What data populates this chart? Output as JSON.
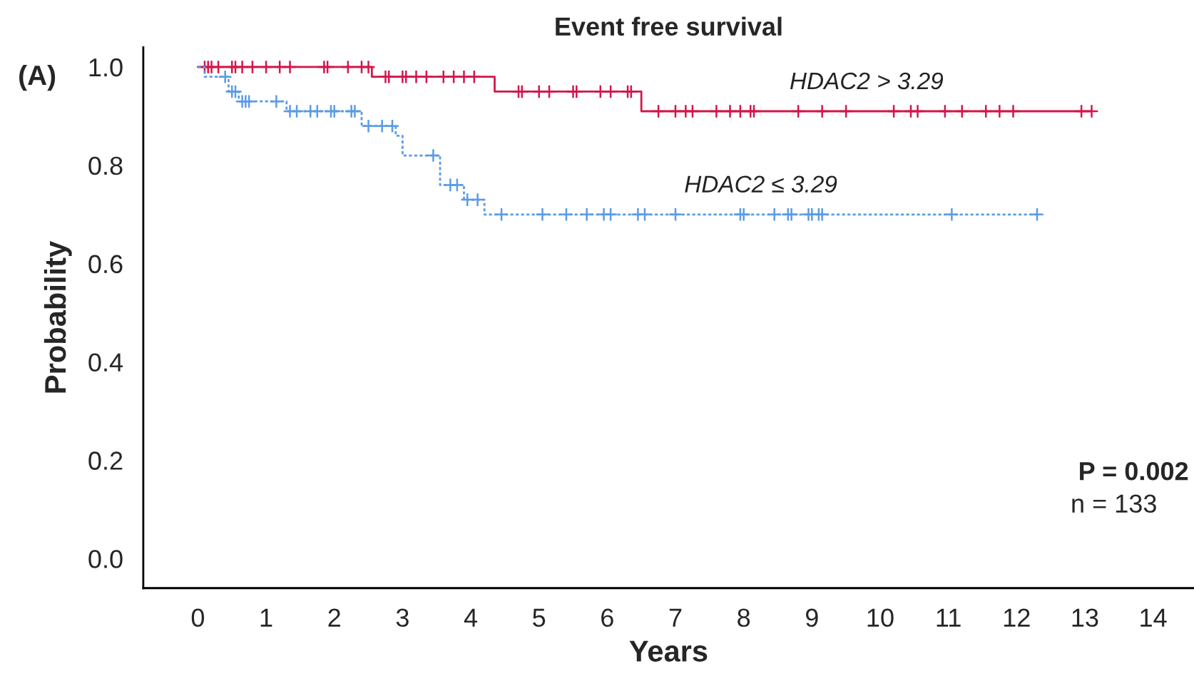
{
  "chart_data": {
    "type": "step",
    "title": "Event free survival",
    "xlabel": "Years",
    "ylabel": "Probability",
    "xlim": [
      -0.8,
      14.6
    ],
    "ylim": [
      -0.06,
      1.04
    ],
    "xticks": [
      0,
      1,
      2,
      3,
      4,
      5,
      6,
      7,
      8,
      9,
      10,
      11,
      12,
      13,
      14
    ],
    "yticks": [
      {
        "value": 0,
        "label": "0.0"
      },
      {
        "value": 0.2,
        "label": "0.2"
      },
      {
        "value": 0.4,
        "label": "0.4"
      },
      {
        "value": 0.6,
        "label": "0.6"
      },
      {
        "value": 0.8,
        "label": "0.8"
      },
      {
        "value": 1,
        "label": "1.0"
      }
    ],
    "grid": false,
    "legend": false,
    "annotations": [
      "(A)",
      "P = 0.002",
      "n = 133"
    ],
    "series": [
      {
        "name": "HDAC2 > 3.29",
        "color": "#d2164a",
        "line_style": "solid",
        "marker": "none",
        "x": [
          0,
          2.55,
          4.35,
          6.5,
          13.1
        ],
        "values": [
          1.0,
          0.98,
          0.95,
          0.91,
          0.91
        ]
      },
      {
        "name": "HDAC2 ≤ 3.29",
        "color": "#5b9be6",
        "line_style": "dashed",
        "marker": "none",
        "x": [
          0,
          0.1,
          0.45,
          0.6,
          1.3,
          2.4,
          2.9,
          3.0,
          3.55,
          3.9,
          4.2,
          12.3
        ],
        "values": [
          1.0,
          0.98,
          0.95,
          0.93,
          0.91,
          0.88,
          0.86,
          0.82,
          0.76,
          0.73,
          0.7,
          0.7
        ]
      },
      {
        "type": "scatter",
        "color": "#d2164a",
        "marker": "cross",
        "x": [
          0.1,
          0.15,
          0.2,
          0.3,
          0.5,
          0.55,
          0.65,
          0.8,
          1.0,
          1.2,
          1.35,
          1.85,
          1.9,
          2.2,
          2.4,
          2.5,
          2.75,
          2.8,
          3.0,
          3.05,
          3.2,
          3.35,
          3.6,
          3.75,
          3.9,
          4.05,
          4.7,
          4.75,
          5.0,
          5.15,
          5.5,
          5.55,
          5.9,
          6.05,
          6.3,
          6.35,
          6.75,
          7.0,
          7.15,
          7.25,
          7.6,
          7.8,
          7.95,
          8.1,
          8.15,
          8.8,
          9.15,
          9.5,
          10.2,
          10.45,
          10.55,
          10.95,
          11.2,
          11.55,
          11.75,
          11.95,
          12.95,
          13.1
        ],
        "values": [
          1.0,
          1.0,
          1.0,
          1.0,
          1.0,
          1.0,
          1.0,
          1.0,
          1.0,
          1.0,
          1.0,
          1.0,
          1.0,
          1.0,
          1.0,
          1.0,
          0.98,
          0.98,
          0.98,
          0.98,
          0.98,
          0.98,
          0.98,
          0.98,
          0.98,
          0.98,
          0.95,
          0.95,
          0.95,
          0.95,
          0.95,
          0.95,
          0.95,
          0.95,
          0.95,
          0.95,
          0.91,
          0.91,
          0.91,
          0.91,
          0.91,
          0.91,
          0.91,
          0.91,
          0.91,
          0.91,
          0.91,
          0.91,
          0.91,
          0.91,
          0.91,
          0.91,
          0.91,
          0.91,
          0.91,
          0.91,
          0.91,
          0.91
        ]
      },
      {
        "type": "scatter",
        "color": "#5b9be6",
        "marker": "cross",
        "x": [
          0.4,
          0.5,
          0.55,
          0.65,
          0.7,
          0.75,
          1.15,
          1.35,
          1.45,
          1.65,
          1.75,
          1.95,
          2.0,
          2.25,
          2.3,
          2.5,
          2.7,
          2.85,
          3.45,
          3.7,
          3.8,
          3.95,
          4.1,
          4.45,
          5.05,
          5.4,
          5.7,
          5.95,
          6.05,
          6.45,
          6.55,
          7.0,
          7.95,
          8.0,
          8.45,
          8.65,
          8.7,
          8.95,
          9.0,
          9.1,
          9.15,
          11.05,
          12.3
        ],
        "values": [
          0.98,
          0.95,
          0.95,
          0.93,
          0.93,
          0.93,
          0.93,
          0.91,
          0.91,
          0.91,
          0.91,
          0.91,
          0.91,
          0.91,
          0.91,
          0.88,
          0.88,
          0.88,
          0.82,
          0.76,
          0.76,
          0.73,
          0.73,
          0.7,
          0.7,
          0.7,
          0.7,
          0.7,
          0.7,
          0.7,
          0.7,
          0.7,
          0.7,
          0.7,
          0.7,
          0.7,
          0.7,
          0.7,
          0.7,
          0.7,
          0.7,
          0.7,
          0.7
        ]
      }
    ]
  }
}
